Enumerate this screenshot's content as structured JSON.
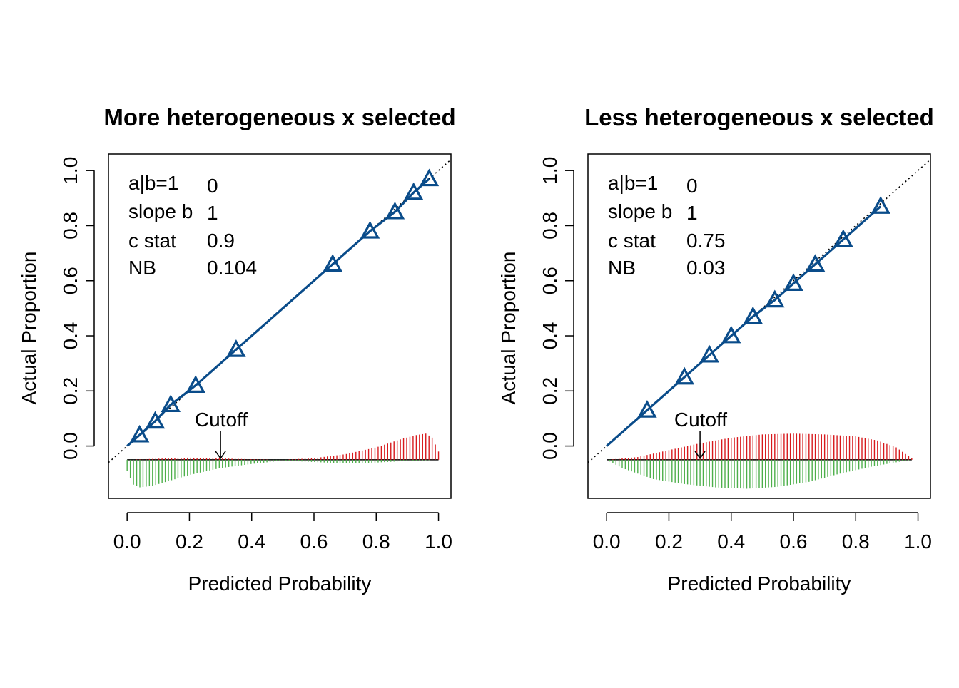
{
  "colors": {
    "calibration_line": "#0A4C8A",
    "positive_spikes": "#D7191C",
    "negative_spikes": "#4DAF4A",
    "reference_line": "#000000"
  },
  "chart_data": [
    {
      "type": "scatter",
      "title": "More heterogeneous x selected",
      "xlabel": "Predicted Probability",
      "ylabel": "Actual Proportion",
      "xlim": [
        -0.06,
        1.04
      ],
      "ylim": [
        -0.19,
        1.06
      ],
      "xticks": [
        "0.0",
        "0.2",
        "0.4",
        "0.6",
        "0.8",
        "1.0"
      ],
      "yticks": [
        "0.0",
        "0.2",
        "0.4",
        "0.6",
        "0.8",
        "1.0"
      ],
      "grid": false,
      "stats": [
        {
          "label": "a|b=1",
          "value": "0"
        },
        {
          "label": "slope b",
          "value": "1"
        },
        {
          "label": "c stat",
          "value": "0.9"
        },
        {
          "label": "NB",
          "value": "0.104"
        }
      ],
      "annotation": {
        "text": "Cutoff",
        "x": 0.3
      },
      "series": [
        {
          "marker": "triangle",
          "x": [
            0.04,
            0.09,
            0.14,
            0.22,
            0.35,
            0.66,
            0.78,
            0.86,
            0.92,
            0.97
          ],
          "y": [
            0.04,
            0.09,
            0.15,
            0.22,
            0.35,
            0.66,
            0.78,
            0.85,
            0.92,
            0.97
          ]
        }
      ],
      "spike_profile": {
        "baseline": -0.05,
        "x_range": [
          0.0,
          1.0
        ],
        "negative": [
          [
            0.0,
            0.04
          ],
          [
            0.02,
            0.09
          ],
          [
            0.04,
            0.1
          ],
          [
            0.08,
            0.095
          ],
          [
            0.14,
            0.075
          ],
          [
            0.2,
            0.055
          ],
          [
            0.3,
            0.03
          ],
          [
            0.4,
            0.015
          ],
          [
            0.5,
            0.003
          ],
          [
            0.6,
            0.008
          ],
          [
            0.7,
            0.013
          ],
          [
            0.8,
            0.01
          ],
          [
            0.9,
            0.004
          ],
          [
            1.0,
            0.0
          ]
        ],
        "positive": [
          [
            0.0,
            0.0
          ],
          [
            0.1,
            0.004
          ],
          [
            0.2,
            0.008
          ],
          [
            0.3,
            0.005
          ],
          [
            0.4,
            0.002
          ],
          [
            0.5,
            0.0
          ],
          [
            0.6,
            0.006
          ],
          [
            0.7,
            0.02
          ],
          [
            0.8,
            0.045
          ],
          [
            0.88,
            0.075
          ],
          [
            0.93,
            0.09
          ],
          [
            0.96,
            0.095
          ],
          [
            0.98,
            0.08
          ],
          [
            1.0,
            0.03
          ]
        ]
      }
    },
    {
      "type": "scatter",
      "title": "Less heterogeneous x selected",
      "xlabel": "Predicted Probability",
      "ylabel": "Actual Proportion",
      "xlim": [
        -0.06,
        1.04
      ],
      "ylim": [
        -0.19,
        1.06
      ],
      "xticks": [
        "0.0",
        "0.2",
        "0.4",
        "0.6",
        "0.8",
        "1.0"
      ],
      "yticks": [
        "0.0",
        "0.2",
        "0.4",
        "0.6",
        "0.8",
        "1.0"
      ],
      "grid": false,
      "stats": [
        {
          "label": "a|b=1",
          "value": "0"
        },
        {
          "label": "slope b",
          "value": "1"
        },
        {
          "label": "c stat",
          "value": "0.75"
        },
        {
          "label": "NB",
          "value": "0.03"
        }
      ],
      "annotation": {
        "text": "Cutoff",
        "x": 0.3
      },
      "series": [
        {
          "marker": "triangle",
          "x": [
            0.13,
            0.25,
            0.33,
            0.4,
            0.47,
            0.54,
            0.6,
            0.67,
            0.76,
            0.88
          ],
          "y": [
            0.13,
            0.25,
            0.33,
            0.4,
            0.47,
            0.53,
            0.59,
            0.66,
            0.75,
            0.87
          ]
        }
      ],
      "spike_profile": {
        "baseline": -0.05,
        "x_range": [
          0.0,
          0.98
        ],
        "negative": [
          [
            0.0,
            0.0
          ],
          [
            0.05,
            0.03
          ],
          [
            0.15,
            0.07
          ],
          [
            0.25,
            0.088
          ],
          [
            0.35,
            0.1
          ],
          [
            0.45,
            0.105
          ],
          [
            0.55,
            0.098
          ],
          [
            0.65,
            0.08
          ],
          [
            0.75,
            0.05
          ],
          [
            0.85,
            0.025
          ],
          [
            0.95,
            0.005
          ],
          [
            0.98,
            0.0
          ]
        ],
        "positive": [
          [
            0.0,
            0.0
          ],
          [
            0.1,
            0.01
          ],
          [
            0.2,
            0.035
          ],
          [
            0.3,
            0.06
          ],
          [
            0.4,
            0.08
          ],
          [
            0.5,
            0.092
          ],
          [
            0.6,
            0.095
          ],
          [
            0.7,
            0.092
          ],
          [
            0.8,
            0.085
          ],
          [
            0.87,
            0.07
          ],
          [
            0.93,
            0.045
          ],
          [
            0.98,
            0.005
          ]
        ]
      }
    }
  ]
}
